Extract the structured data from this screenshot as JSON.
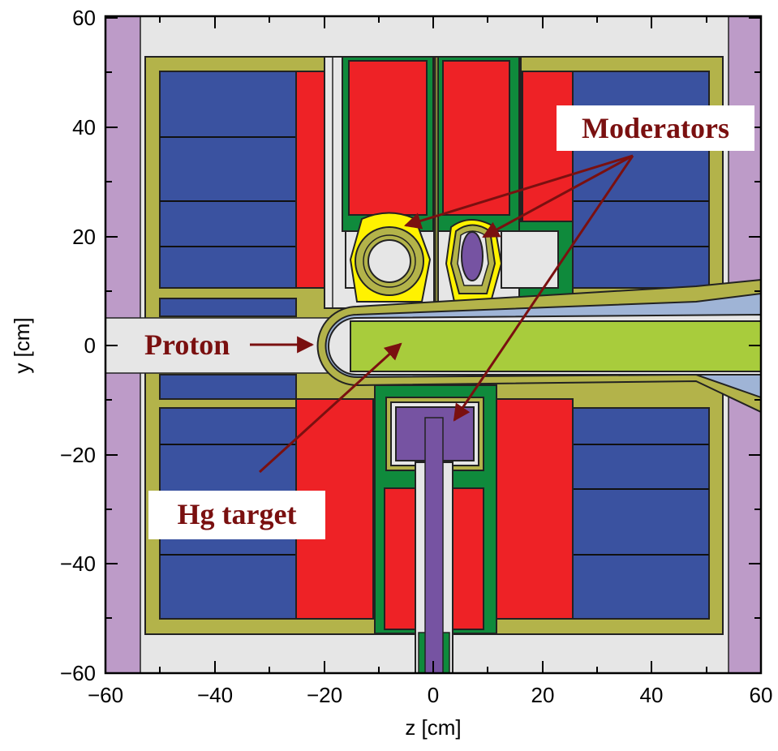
{
  "axes": {
    "xlabel": "z [cm]",
    "ylabel": "y [cm]",
    "x_ticks": [
      "−60",
      "−40",
      "−20",
      "0",
      "20",
      "40",
      "60"
    ],
    "y_ticks": [
      "60",
      "40",
      "20",
      "0",
      "−20",
      "−40",
      "−60"
    ],
    "xlim": [
      -60,
      60
    ],
    "ylim": [
      -60,
      60
    ]
  },
  "labels": {
    "moderators": "Moderators",
    "proton": "Proton",
    "hg_target": "Hg target"
  },
  "colors": {
    "outer_region": "#bd9bc8",
    "background": "#e6e6e6",
    "shield_blue": "#3a52a0",
    "reflector_red": "#ee2226",
    "frame_olive": "#b3b34a",
    "green": "#0f8a3c",
    "target_green": "#a8cc3c",
    "moderator_purple": "#7653a2",
    "yellow": "#fff200",
    "arrow": "#7a1010"
  }
}
